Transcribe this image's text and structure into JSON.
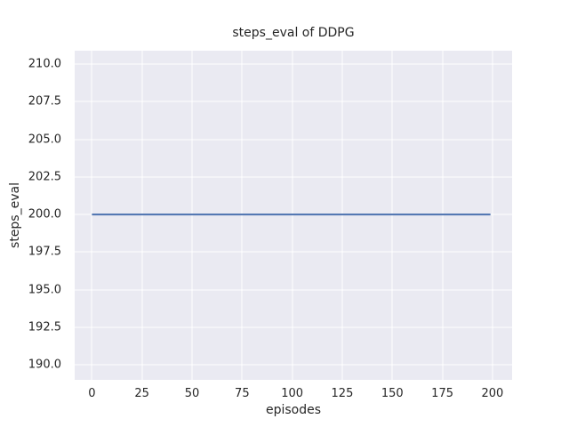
{
  "colors": {
    "figure_background": "#ffffff",
    "axes_background": "#eaeaf2",
    "grid": "#ffffff",
    "text": "#262626",
    "line": "#4c72b0"
  },
  "chart_data": {
    "type": "line",
    "title": "steps_eval of DDPG",
    "xlabel": "episodes",
    "ylabel": "steps_eval",
    "xlim": [
      -8.6,
      209.8
    ],
    "ylim": [
      189.0,
      210.9
    ],
    "xticks": [
      0,
      25,
      50,
      75,
      100,
      125,
      150,
      175,
      200
    ],
    "xtick_labels": [
      "0",
      "25",
      "50",
      "75",
      "100",
      "125",
      "150",
      "175",
      "200"
    ],
    "yticks": [
      190.0,
      192.5,
      195.0,
      197.5,
      200.0,
      202.5,
      205.0,
      207.5,
      210.0
    ],
    "ytick_labels": [
      "190.0",
      "192.5",
      "195.0",
      "197.5",
      "200.0",
      "202.5",
      "205.0",
      "207.5",
      "210.0"
    ],
    "grid": true,
    "legend_position": "none",
    "series": [
      {
        "name": "DDPG",
        "color": "#4c72b0",
        "linewidth": 2,
        "x": [
          0,
          199
        ],
        "y": [
          200,
          200
        ]
      }
    ]
  }
}
